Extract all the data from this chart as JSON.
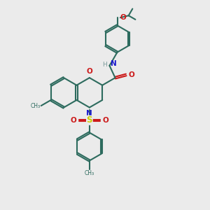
{
  "background_color": "#ebebeb",
  "bond_color": "#2d6b5e",
  "N_color": "#1a1acc",
  "O_color": "#cc1a1a",
  "S_color": "#cccc00",
  "H_color": "#7a9a9a",
  "line_width": 1.5,
  "figsize": [
    3.0,
    3.0
  ],
  "dpi": 100,
  "xlim": [
    0,
    10
  ],
  "ylim": [
    0,
    10
  ]
}
